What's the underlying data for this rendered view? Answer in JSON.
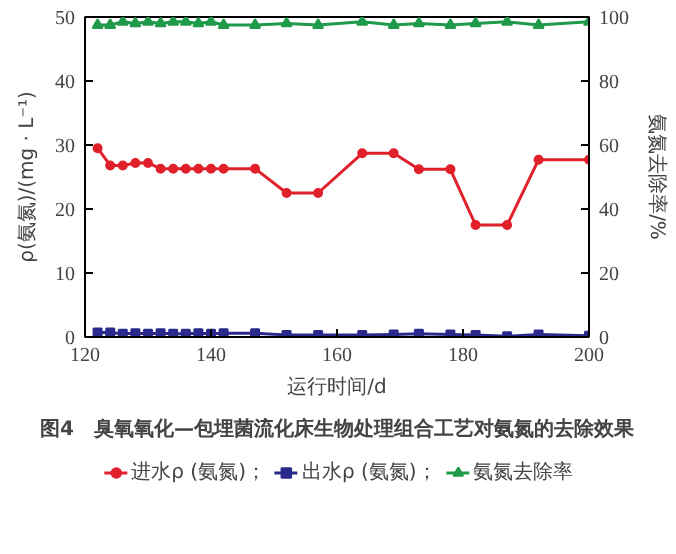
{
  "chart_data": {
    "type": "line",
    "title": "图4　臭氧氧化—包埋菌流化床生物处理组合工艺对氨氮的去除效果",
    "xlabel": "运行时间/d",
    "ylabel": "ρ(氨氮)/(mg · L⁻¹)",
    "y2label": "氨氮去除率/%",
    "x": [
      122,
      124,
      126,
      128,
      130,
      132,
      134,
      136,
      138,
      140,
      142,
      147,
      152,
      157,
      164,
      169,
      173,
      178,
      182,
      187,
      192,
      200
    ],
    "series": [
      {
        "name": "进水ρ (氨氮)；",
        "color": "#e0202a",
        "marker": "circle",
        "values": [
          29.5,
          26.8,
          26.8,
          27.2,
          27.2,
          26.3,
          26.3,
          26.3,
          26.3,
          26.3,
          26.3,
          26.3,
          22.5,
          22.5,
          28.7,
          28.7,
          26.2,
          26.2,
          17.5,
          17.5,
          27.7,
          27.7
        ]
      },
      {
        "name": "出水ρ (氨氮)；",
        "color": "#2a2a8c",
        "marker": "square",
        "values": [
          0.7,
          0.7,
          0.5,
          0.6,
          0.5,
          0.6,
          0.5,
          0.5,
          0.6,
          0.5,
          0.6,
          0.6,
          0.3,
          0.3,
          0.3,
          0.4,
          0.5,
          0.4,
          0.3,
          0.1,
          0.4,
          0.2
        ]
      },
      {
        "name": "氨氮去除率",
        "color": "#1f9a4a",
        "marker": "triangle",
        "axis": "y2",
        "values": [
          97.5,
          97.5,
          98.5,
          98,
          98.5,
          98,
          98.5,
          98.5,
          98,
          98.5,
          97.5,
          97.5,
          98,
          97.5,
          98.5,
          97.5,
          98,
          97.5,
          98,
          98.5,
          97.5,
          98.5
        ]
      }
    ],
    "xlim": [
      120,
      200
    ],
    "xticks": [
      120,
      140,
      160,
      180,
      200
    ],
    "ylim": [
      0,
      50
    ],
    "yticks": [
      0,
      10,
      20,
      30,
      40,
      50
    ],
    "y2lim": [
      0,
      100
    ],
    "y2ticks": [
      0,
      20,
      40,
      60,
      80,
      100
    ],
    "grid": false,
    "legend": "bottom",
    "line_style": "solid"
  }
}
